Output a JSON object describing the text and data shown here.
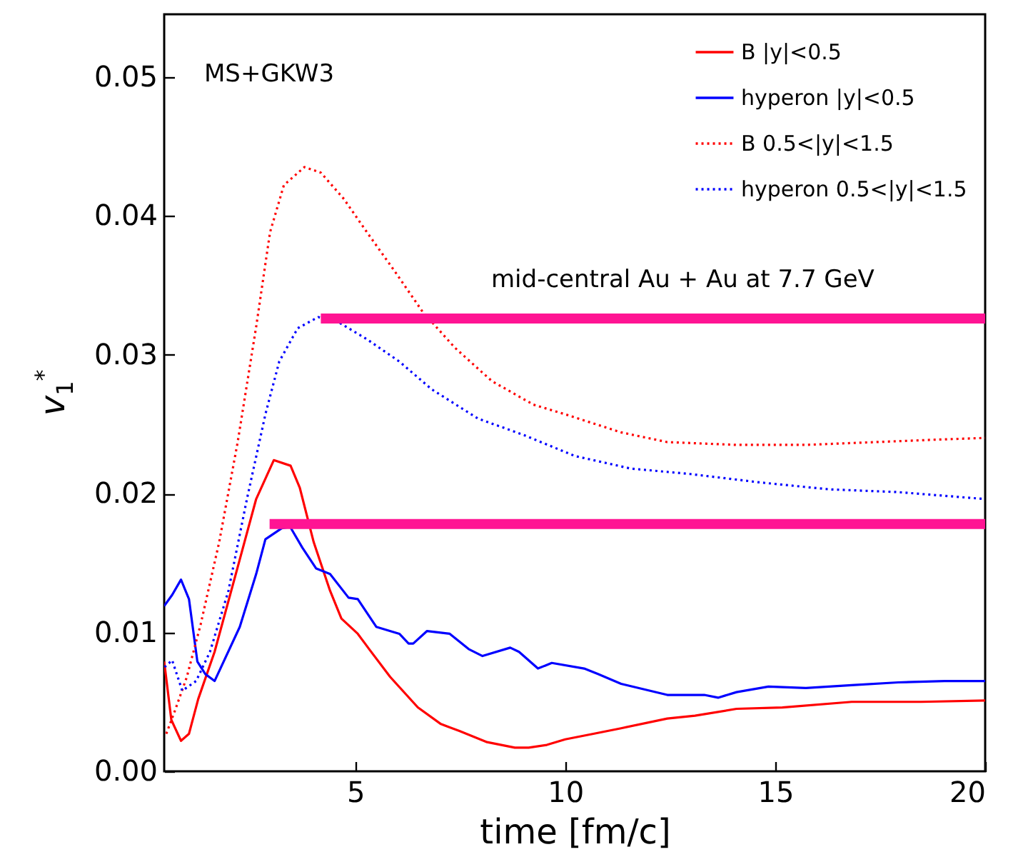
{
  "chart_data": {
    "type": "line",
    "xlabel": "time [fm/c]",
    "ylabel": "v$_{1}$$^{*}$",
    "xlim": [
      0.45,
      20
    ],
    "ylim": [
      0,
      0.0545
    ],
    "xticks": [
      5,
      10,
      15,
      20
    ],
    "yticks": [
      {
        "value": 0,
        "label": "0.00"
      },
      {
        "value": 0.01,
        "label": "0.01"
      },
      {
        "value": 0.02,
        "label": "0.02"
      },
      {
        "value": 0.03,
        "label": "0.03"
      },
      {
        "value": 0.04,
        "label": "0.04"
      },
      {
        "value": 0.05,
        "label": "0.05"
      }
    ],
    "legend": "top right",
    "annotations": [
      "MS+GKW3",
      "mid-central Au + Au at 7.7 GeV"
    ],
    "series": [
      {
        "name": "B |y|<0.5",
        "color": "#ff0000",
        "line_style": "solid",
        "x": [
          0.45,
          0.62,
          0.85,
          1.04,
          1.26,
          1.65,
          2.2,
          2.64,
          3.06,
          3.46,
          3.68,
          4.01,
          4.4,
          4.67,
          5.06,
          5.33,
          5.83,
          6.49,
          7.04,
          7.48,
          8.14,
          8.8,
          9.13,
          9.56,
          10.0,
          10.67,
          11.33,
          12.43,
          13.09,
          14.08,
          15.17,
          16.82,
          18.47,
          20
        ],
        "values": [
          0.0079,
          0.0037,
          0.0022,
          0.0027,
          0.0052,
          0.0086,
          0.0147,
          0.0196,
          0.0224,
          0.022,
          0.0204,
          0.0165,
          0.013,
          0.011,
          0.0099,
          0.0088,
          0.0068,
          0.0046,
          0.0034,
          0.0029,
          0.0021,
          0.0017,
          0.0017,
          0.0019,
          0.0023,
          0.0027,
          0.0031,
          0.0038,
          0.004,
          0.0045,
          0.0046,
          0.005,
          0.005,
          0.0051
        ]
      },
      {
        "name": "hyperon |y|<0.5",
        "color": "#0000ff",
        "line_style": "solid",
        "x": [
          0.45,
          0.64,
          0.85,
          1.04,
          1.24,
          1.43,
          1.65,
          2.25,
          2.64,
          2.86,
          3.25,
          3.45,
          3.74,
          4.07,
          4.4,
          4.84,
          5.06,
          5.5,
          6.05,
          6.27,
          6.38,
          6.71,
          7.25,
          7.7,
          8.03,
          8.69,
          8.9,
          9.35,
          9.68,
          10.45,
          10.78,
          11.33,
          12.43,
          13.31,
          13.64,
          14.08,
          14.84,
          15.73,
          16.82,
          17.93,
          19.03,
          20
        ],
        "values": [
          0.0119,
          0.0127,
          0.0138,
          0.0124,
          0.0079,
          0.007,
          0.0065,
          0.0104,
          0.0142,
          0.0167,
          0.0175,
          0.0176,
          0.0161,
          0.0146,
          0.0142,
          0.0125,
          0.0124,
          0.0104,
          0.0099,
          0.0092,
          0.0092,
          0.0101,
          0.0099,
          0.0088,
          0.0083,
          0.0089,
          0.0086,
          0.0074,
          0.0078,
          0.0074,
          0.007,
          0.0063,
          0.0055,
          0.0055,
          0.0053,
          0.0057,
          0.0061,
          0.006,
          0.0062,
          0.0064,
          0.0065,
          0.0065
        ]
      },
      {
        "name": "B 0.5<|y|<1.5",
        "color": "#ff0000",
        "line_style": "dotted",
        "x": [
          0.5,
          0.71,
          0.99,
          1.32,
          1.76,
          2.2,
          2.64,
          2.97,
          3.3,
          3.79,
          4.18,
          4.73,
          5.28,
          5.94,
          6.6,
          7.37,
          8.25,
          9.24,
          10.0,
          11.33,
          12.43,
          14.08,
          15.73,
          17.38,
          19.03,
          20
        ],
        "values": [
          0.0027,
          0.0044,
          0.0068,
          0.0106,
          0.0165,
          0.0237,
          0.032,
          0.0388,
          0.0422,
          0.0435,
          0.0431,
          0.0412,
          0.0388,
          0.036,
          0.0331,
          0.0305,
          0.0281,
          0.0264,
          0.0257,
          0.0244,
          0.0237,
          0.0235,
          0.0235,
          0.0237,
          0.0239,
          0.024
        ]
      },
      {
        "name": "hyperon 0.5<|y|<1.5",
        "color": "#0000ff",
        "line_style": "dotted",
        "x": [
          0.46,
          0.64,
          0.88,
          1.21,
          1.54,
          1.98,
          2.42,
          2.86,
          3.19,
          3.63,
          4.12,
          4.62,
          5.28,
          6.05,
          6.82,
          7.92,
          9.02,
          10.23,
          11.55,
          12.98,
          14.63,
          16.28,
          17.93,
          20
        ],
        "values": [
          0.0075,
          0.008,
          0.0058,
          0.0065,
          0.0086,
          0.013,
          0.0196,
          0.0257,
          0.0295,
          0.0319,
          0.0327,
          0.0323,
          0.0311,
          0.0295,
          0.0275,
          0.0254,
          0.0242,
          0.0227,
          0.0218,
          0.0214,
          0.0208,
          0.0203,
          0.0201,
          0.0196
        ]
      },
      {
        "color": "#ff1493",
        "line_style": "solid",
        "x": [
          4.18,
          20
        ],
        "values": [
          0.0326,
          0.0326
        ]
      },
      {
        "color": "#ff1493",
        "line_style": "solid",
        "x": [
          2.96,
          20
        ],
        "values": [
          0.0178,
          0.0178
        ]
      }
    ]
  }
}
